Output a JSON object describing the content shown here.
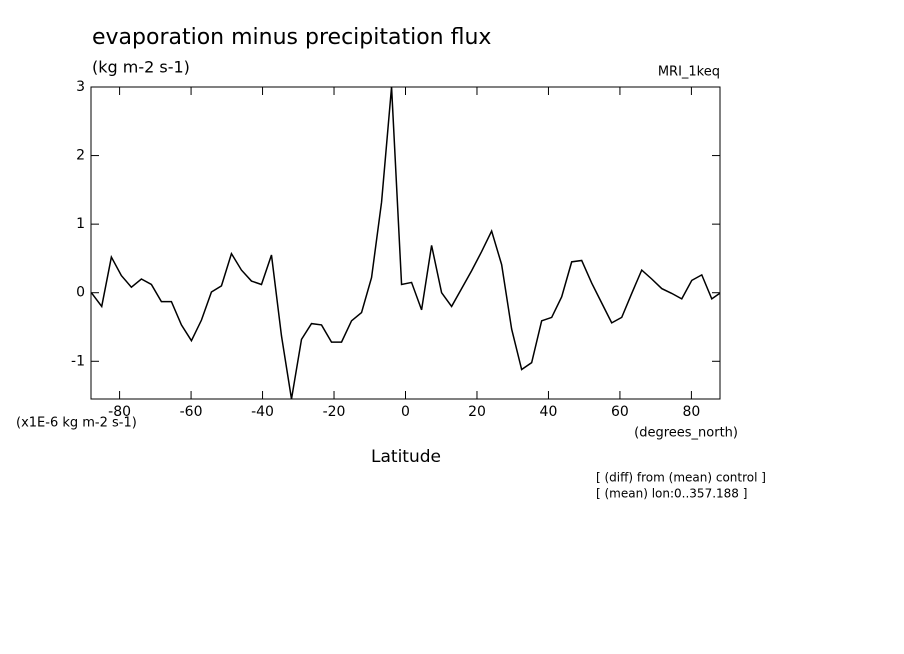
{
  "chart_data": {
    "type": "line",
    "title": "evaporation minus precipitation flux",
    "subtitle": "(kg m-2 s-1)",
    "model_label": "MRI_1keq",
    "y_scale_label": "(x1E-6 kg m-2 s-1)",
    "x_units_label": "(degrees_north)",
    "x_label": "Latitude",
    "annotations": [
      "[ (diff) from (mean) control ]",
      "[ (mean) lon:0..357.188 ]"
    ],
    "x": [
      -87.9,
      -85,
      -82.3,
      -79.5,
      -76.7,
      -73.9,
      -71.1,
      -68.3,
      -65.5,
      -62.7,
      -59.9,
      -57.1,
      -54.3,
      -51.5,
      -48.7,
      -45.9,
      -43.1,
      -40.3,
      -37.5,
      -34.7,
      -31.9,
      -29.1,
      -26.3,
      -23.5,
      -20.7,
      -17.9,
      -15.1,
      -12.3,
      -9.5,
      -6.7,
      -3.9,
      -1.1,
      1.7,
      4.5,
      7.3,
      10.1,
      12.9,
      15.7,
      18.5,
      21.3,
      24.1,
      26.9,
      29.7,
      32.5,
      35.3,
      38.1,
      40.9,
      43.7,
      46.5,
      49.3,
      52.1,
      54.9,
      57.7,
      60.5,
      63.3,
      66.1,
      68.9,
      71.7,
      74.5,
      77.3,
      80.1,
      82.9,
      85.7,
      87.9
    ],
    "series": [
      {
        "color": "#000000",
        "values": [
          0,
          -0.2,
          0.52,
          0.25,
          0.08,
          0.2,
          0.12,
          -0.13,
          -0.13,
          -0.47,
          -0.7,
          -0.4,
          0.01,
          0.1,
          0.57,
          0.33,
          0.17,
          0.12,
          0.55,
          -0.63,
          -1.55,
          -0.68,
          -0.45,
          -0.47,
          -0.72,
          -0.72,
          -0.41,
          -0.29,
          0.22,
          1.32,
          3,
          0.12,
          0.15,
          -0.25,
          0.69,
          0,
          -0.2,
          0.06,
          0.32,
          0.6,
          0.9,
          0.41,
          -0.53,
          -1.12,
          -1.02,
          -0.41,
          -0.36,
          -0.06,
          0.45,
          0.47,
          0.14,
          -0.15,
          -0.44,
          -0.36,
          -0.01,
          0.33,
          0.2,
          0.06,
          -0.01,
          -0.09,
          0.18,
          0.26,
          -0.09,
          -0.01
        ]
      }
    ],
    "xlim": [
      -88,
      88
    ],
    "ylim": [
      -1.55,
      3
    ],
    "xticks": [
      -80,
      -60,
      -40,
      -20,
      0,
      20,
      40,
      60,
      80
    ],
    "yticks": [
      -1,
      0,
      1,
      2,
      3
    ]
  }
}
